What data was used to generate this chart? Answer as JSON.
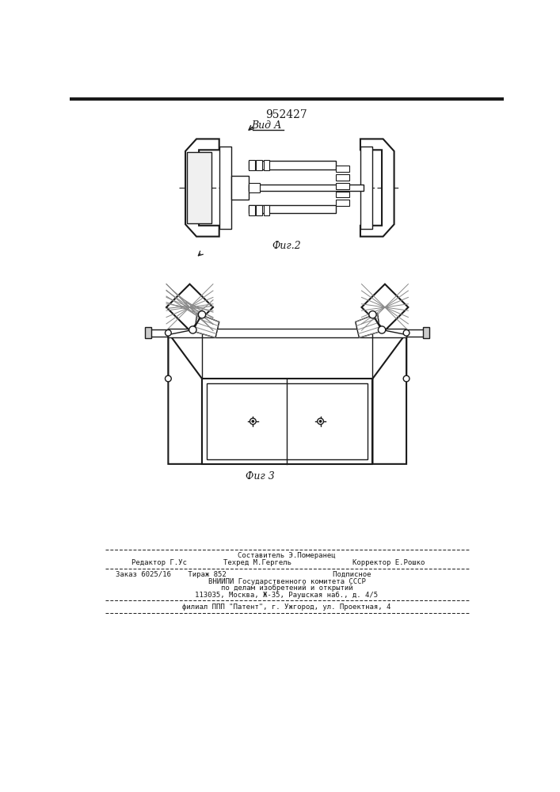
{
  "patent_number": "952427",
  "view_label": "Вид А",
  "fig2_label": "Фиг.2",
  "fig3_label": "Фиг 3",
  "line_color": "#1a1a1a",
  "footer_line1_center_top": "Составитель Э.Померанец",
  "footer_line1_left": "Редактор Г.Ус",
  "footer_line1_center": "Техред М.Гергель",
  "footer_line1_right": "Корректор Е.Рошко",
  "footer_line2": "Заказ 6025/16    Тираж 852                         Подписное",
  "footer_line3": "ВНИИПИ Государственного комитета СССР",
  "footer_line4": "по делам изобретений и открытий",
  "footer_line5": "113035, Москва, Ж-35, Раушская наб., д. 4/5",
  "footer_line6": "филиал ППП \"Патент\", г. Ужгород, ул. Проектная, 4"
}
